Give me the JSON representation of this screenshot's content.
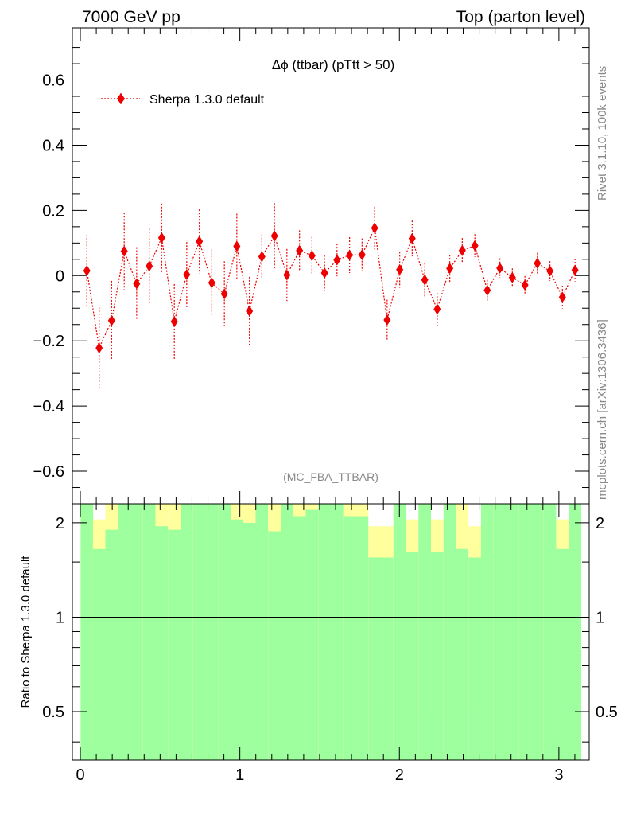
{
  "header": {
    "left": "7000 GeV pp",
    "right": "Top (parton level)"
  },
  "side_text": {
    "rivet": "Rivet 3.1.10,  100k events",
    "mcplots": "mcplots.cern.ch [arXiv:1306.3436]"
  },
  "colors": {
    "series": "#ee0000",
    "band_inner": "#9dff9d",
    "band_outer": "#ffff9d",
    "axis": "#000000"
  },
  "chart_data": [
    {
      "type": "scatter",
      "title": "Δϕ (ttbar) (pTtt > 50)",
      "watermark": "(MC_FBA_TTBAR)",
      "xlabel": "",
      "ylabel": "",
      "xlim": [
        -0.05,
        3.19
      ],
      "ylim": [
        -0.7,
        0.76
      ],
      "yticks": [
        -0.6,
        -0.4,
        -0.2,
        0,
        0.2,
        0.4,
        0.6
      ],
      "ytick_labels": [
        "−0.6",
        "−0.4",
        "−0.2",
        "0",
        "0.2",
        "0.4",
        "0.6"
      ],
      "legend": [
        "Sherpa 1.3.0 default"
      ],
      "legend_position": "top-left",
      "series": [
        {
          "name": "Sherpa 1.3.0 default",
          "x": [
            0.041,
            0.118,
            0.196,
            0.275,
            0.353,
            0.432,
            0.51,
            0.589,
            0.667,
            0.746,
            0.824,
            0.903,
            0.981,
            1.06,
            1.138,
            1.217,
            1.295,
            1.374,
            1.452,
            1.531,
            1.609,
            1.688,
            1.766,
            1.845,
            1.923,
            2.002,
            2.08,
            2.159,
            2.237,
            2.316,
            2.394,
            2.473,
            2.551,
            2.63,
            2.708,
            2.787,
            2.865,
            2.944,
            3.022,
            3.101
          ],
          "y": [
            0.015,
            -0.222,
            -0.138,
            0.075,
            -0.025,
            0.029,
            0.116,
            -0.141,
            0.003,
            0.105,
            -0.022,
            -0.056,
            0.09,
            -0.109,
            0.058,
            0.122,
            0.002,
            0.077,
            0.061,
            0.008,
            0.048,
            0.063,
            0.064,
            0.146,
            -0.136,
            0.018,
            0.114,
            -0.013,
            -0.103,
            0.022,
            0.077,
            0.092,
            -0.045,
            0.023,
            -0.006,
            -0.029,
            0.038,
            0.014,
            -0.066,
            0.017
          ],
          "yerr": [
            0.11,
            0.125,
            0.122,
            0.118,
            0.112,
            0.115,
            0.105,
            0.115,
            0.1,
            0.098,
            0.102,
            0.1,
            0.1,
            0.105,
            0.068,
            0.1,
            0.08,
            0.062,
            0.058,
            0.055,
            0.05,
            0.055,
            0.05,
            0.065,
            0.062,
            0.055,
            0.055,
            0.052,
            0.05,
            0.042,
            0.038,
            0.035,
            0.032,
            0.03,
            0.028,
            0.028,
            0.032,
            0.03,
            0.035,
            0.035
          ]
        }
      ]
    },
    {
      "type": "area",
      "title": "",
      "xlabel": "",
      "ylabel": "Ratio to Sherpa 1.3.0 default",
      "xlim": [
        -0.05,
        3.19
      ],
      "ylim": [
        0.35,
        2.3
      ],
      "yscale": "log",
      "yticks": [
        0.5,
        1,
        2
      ],
      "ytick_labels": [
        "0.5",
        "1",
        "2"
      ],
      "xticks": [
        0,
        1,
        2,
        3
      ],
      "xtick_labels": [
        "0",
        "1",
        "2",
        "3"
      ],
      "reference_line": 1,
      "bin_width": 0.0785,
      "x": [
        0.041,
        0.118,
        0.196,
        0.275,
        0.353,
        0.432,
        0.51,
        0.589,
        0.667,
        0.746,
        0.824,
        0.903,
        0.981,
        1.06,
        1.138,
        1.217,
        1.295,
        1.374,
        1.452,
        1.531,
        1.609,
        1.688,
        1.766,
        1.845,
        1.923,
        2.002,
        2.08,
        2.159,
        2.237,
        2.316,
        2.394,
        2.473,
        2.551,
        2.63,
        2.708,
        2.787,
        2.865,
        2.944,
        3.022,
        3.101
      ],
      "inner_hi": [
        2.3,
        1.65,
        1.9,
        2.3,
        2.3,
        2.3,
        1.95,
        1.9,
        2.3,
        2.3,
        2.3,
        2.3,
        2.05,
        2.0,
        2.3,
        1.88,
        2.3,
        2.1,
        2.2,
        2.3,
        2.3,
        2.1,
        2.1,
        1.55,
        1.55,
        2.3,
        1.62,
        2.3,
        1.62,
        2.3,
        1.65,
        1.55,
        2.3,
        2.3,
        2.3,
        2.3,
        2.3,
        2.3,
        1.65,
        2.3
      ],
      "outer_hi": [
        2.3,
        2.05,
        2.3,
        2.3,
        2.3,
        2.3,
        2.3,
        2.3,
        2.3,
        2.3,
        2.3,
        2.3,
        2.3,
        2.3,
        2.3,
        2.3,
        2.3,
        2.3,
        2.3,
        2.3,
        2.3,
        2.3,
        2.3,
        1.95,
        1.95,
        2.3,
        2.05,
        2.3,
        2.05,
        2.3,
        2.3,
        1.95,
        2.3,
        2.3,
        2.2,
        2.3,
        2.3,
        2.3,
        2.05,
        2.3
      ],
      "inner_lo": [
        0.35,
        0.35,
        0.35,
        0.35,
        0.35,
        0.35,
        0.35,
        0.35,
        0.35,
        0.35,
        0.35,
        0.35,
        0.35,
        0.35,
        0.35,
        0.35,
        0.35,
        0.35,
        0.35,
        0.35,
        0.35,
        0.35,
        0.35,
        0.35,
        0.35,
        0.35,
        0.35,
        0.35,
        0.35,
        0.35,
        0.35,
        0.35,
        0.35,
        0.35,
        0.35,
        0.35,
        0.35,
        0.35,
        0.35,
        0.35
      ],
      "outer_lo": [
        0.35,
        0.39,
        0.35,
        0.35,
        0.35,
        0.35,
        0.35,
        0.35,
        0.35,
        0.35,
        0.35,
        0.35,
        0.35,
        0.35,
        0.35,
        0.35,
        0.35,
        0.35,
        0.35,
        0.35,
        0.35,
        0.35,
        0.35,
        0.54,
        0.53,
        0.35,
        0.47,
        0.35,
        0.48,
        0.35,
        0.36,
        0.51,
        0.35,
        0.35,
        0.35,
        0.35,
        0.35,
        0.35,
        0.42,
        0.35
      ]
    }
  ]
}
